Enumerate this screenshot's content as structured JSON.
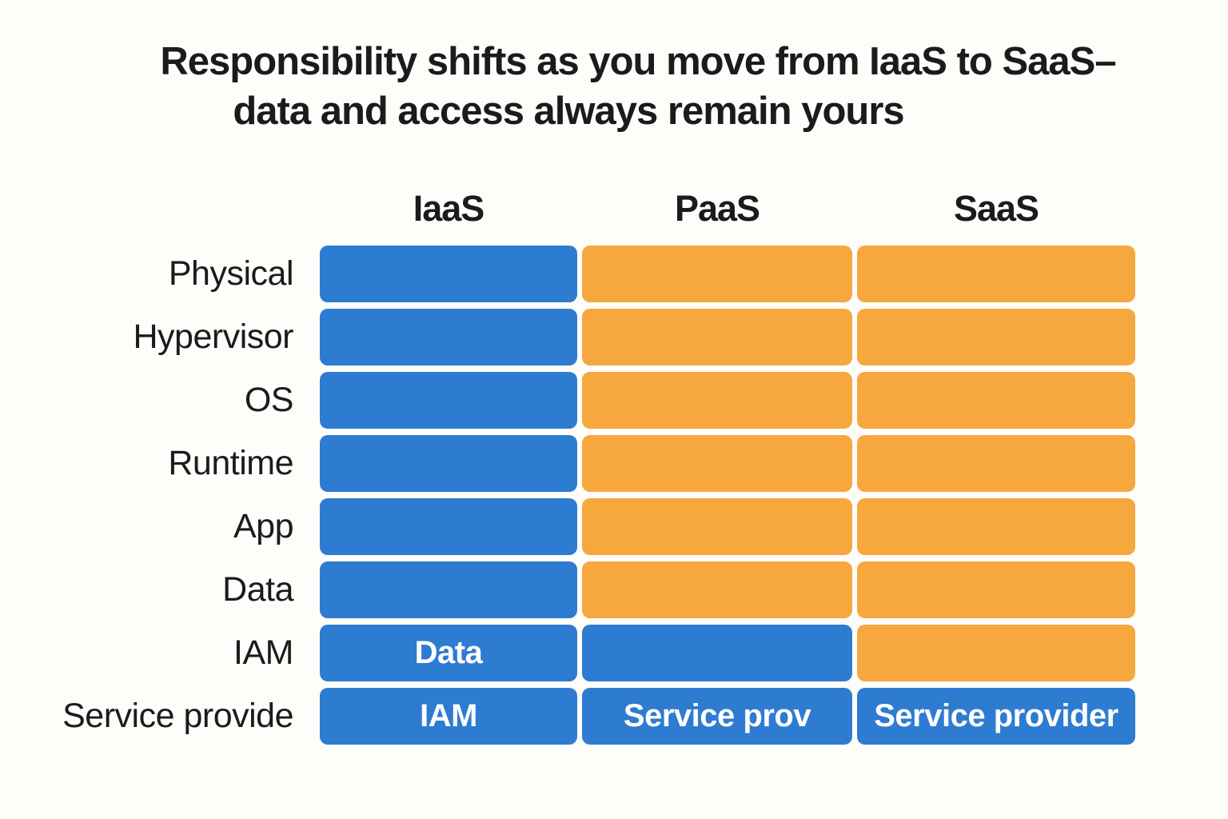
{
  "title": {
    "line1": "Responsibility shifts as you move from IaaS to SaaS–",
    "line2": "data and access always remain yours"
  },
  "matrix": {
    "column_headers": [
      "IaaS",
      "PaaS",
      "SaaS"
    ],
    "rows": [
      {
        "label": "Physical",
        "cells": [
          {
            "color": "blue",
            "text": ""
          },
          {
            "color": "orange",
            "text": ""
          },
          {
            "color": "orange",
            "text": ""
          }
        ]
      },
      {
        "label": "Hypervisor",
        "cells": [
          {
            "color": "blue",
            "text": ""
          },
          {
            "color": "orange",
            "text": ""
          },
          {
            "color": "orange",
            "text": ""
          }
        ]
      },
      {
        "label": "OS",
        "cells": [
          {
            "color": "blue",
            "text": ""
          },
          {
            "color": "orange",
            "text": ""
          },
          {
            "color": "orange",
            "text": ""
          }
        ]
      },
      {
        "label": "Runtime",
        "cells": [
          {
            "color": "blue",
            "text": ""
          },
          {
            "color": "orange",
            "text": ""
          },
          {
            "color": "orange",
            "text": ""
          }
        ]
      },
      {
        "label": "App",
        "cells": [
          {
            "color": "blue",
            "text": ""
          },
          {
            "color": "orange",
            "text": ""
          },
          {
            "color": "orange",
            "text": ""
          }
        ]
      },
      {
        "label": "Data",
        "cells": [
          {
            "color": "blue",
            "text": ""
          },
          {
            "color": "orange",
            "text": ""
          },
          {
            "color": "orange",
            "text": ""
          }
        ]
      },
      {
        "label": "IAM",
        "cells": [
          {
            "color": "blue",
            "text": "Data"
          },
          {
            "color": "blue",
            "text": ""
          },
          {
            "color": "orange",
            "text": ""
          }
        ]
      },
      {
        "label": "Service provide",
        "cells": [
          {
            "color": "blue",
            "text": "IAM"
          },
          {
            "color": "blue",
            "text": "Service prov"
          },
          {
            "color": "blue",
            "text": "Service provider"
          }
        ]
      }
    ]
  },
  "colors": {
    "blue": "#2E7BD2",
    "orange": "#F6A73E",
    "background": "#FDFDFA",
    "heading_text": "#1B1B1D",
    "cell_text": "#FFFFFF"
  }
}
